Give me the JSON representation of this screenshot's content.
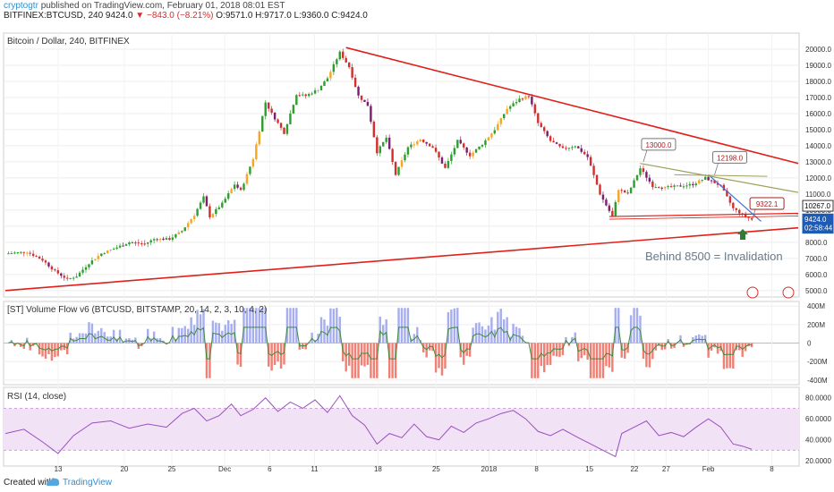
{
  "header": {
    "user": "cryptogtr",
    "published": "published on TradingView.com, February 01, 2018 08:01 EST",
    "ticker": "BITFINEX:BTCUSD, 240",
    "last": "9424.0",
    "change": "−843.0 (−8.21%)",
    "ohlc": "O:9571.0 H:9717.0 L:9360.0 C:9424.0"
  },
  "footer": {
    "created": "Created with",
    "brand": "TradingView"
  },
  "colors": {
    "up": "#2e9e2e",
    "down": "#d32f2f",
    "orange": "#f5a623",
    "purple": "#7b1f6e",
    "trend": "#e0201a",
    "olive": "#9ba05c",
    "blue": "#3f6fdc",
    "rsi_line": "#9a4fc0",
    "rsi_band": "#f1e2f6",
    "vf_pos": "#a6aef0",
    "vf_neg": "#f07f74",
    "vf_line": "#3f8c3c"
  },
  "chart_data": [
    {
      "type": "candlestick",
      "title": "Bitcoin / Dollar, 240, BITFINEX",
      "ylim": [
        4600,
        21000
      ],
      "y_ticks": [
        "20000.0",
        "19000.0",
        "18000.0",
        "17000.0",
        "16000.0",
        "15000.0",
        "14000.0",
        "13000.0",
        "12000.0",
        "11000.0",
        "10000.0",
        "9000.0",
        "8000.0",
        "7000.0",
        "6000.0",
        "5000.0"
      ],
      "x_ticks": [
        "13",
        "20",
        "25",
        "Dec",
        "6",
        "11",
        "18",
        "25",
        "2018",
        "8",
        "15",
        "22",
        "27",
        "Feb",
        "8"
      ],
      "price_path": [
        [
          0,
          7300
        ],
        [
          7,
          7400
        ],
        [
          12,
          6900
        ],
        [
          16,
          6200
        ],
        [
          20,
          5700
        ],
        [
          23,
          5900
        ],
        [
          27,
          6700
        ],
        [
          31,
          7300
        ],
        [
          35,
          7600
        ],
        [
          40,
          8000
        ],
        [
          45,
          7900
        ],
        [
          48,
          8200
        ],
        [
          53,
          8200
        ],
        [
          57,
          8700
        ],
        [
          61,
          9700
        ],
        [
          64,
          10800
        ],
        [
          66,
          9600
        ],
        [
          70,
          10400
        ],
        [
          74,
          11600
        ],
        [
          76,
          11200
        ],
        [
          80,
          13200
        ],
        [
          84,
          16700
        ],
        [
          86,
          16000
        ],
        [
          90,
          14800
        ],
        [
          94,
          17200
        ],
        [
          97,
          17100
        ],
        [
          101,
          17500
        ],
        [
          104,
          18200
        ],
        [
          108,
          19800
        ],
        [
          111,
          18900
        ],
        [
          114,
          17100
        ],
        [
          117,
          16500
        ],
        [
          120,
          13600
        ],
        [
          123,
          14500
        ],
        [
          126,
          12200
        ],
        [
          130,
          13900
        ],
        [
          134,
          14400
        ],
        [
          138,
          13900
        ],
        [
          142,
          12600
        ],
        [
          146,
          14300
        ],
        [
          150,
          13400
        ],
        [
          154,
          14100
        ],
        [
          158,
          15000
        ],
        [
          162,
          16300
        ],
        [
          166,
          16900
        ],
        [
          169,
          17100
        ],
        [
          172,
          15400
        ],
        [
          176,
          14300
        ],
        [
          180,
          13800
        ],
        [
          184,
          14000
        ],
        [
          188,
          13300
        ],
        [
          192,
          11000
        ],
        [
          196,
          9600
        ],
        [
          198,
          11300
        ],
        [
          201,
          11000
        ],
        [
          205,
          12600
        ],
        [
          209,
          11500
        ],
        [
          213,
          11400
        ],
        [
          218,
          11500
        ],
        [
          222,
          11600
        ],
        [
          226,
          12000
        ],
        [
          231,
          11500
        ],
        [
          235,
          10100
        ],
        [
          239,
          9600
        ],
        [
          241,
          9424
        ]
      ],
      "callouts": [
        {
          "label": "13000.0",
          "x": 206,
          "y": 13000
        },
        {
          "label": "12198.0",
          "x": 229,
          "y": 12198
        },
        {
          "label": "9322.1",
          "x": 241,
          "y": 9322
        }
      ],
      "price_badges": [
        {
          "label": "10267.0",
          "y": 10267
        },
        {
          "label": "9424.0",
          "y": 9424
        },
        {
          "label": "02:58:44",
          "y": 8900
        }
      ],
      "annotation": "Behind 8500 = Invalidation",
      "trendlines": [
        {
          "name": "upper",
          "from": [
            110,
            20100
          ],
          "to": [
            256,
            12900
          ]
        },
        {
          "name": "lower",
          "from": [
            0,
            5000
          ],
          "to": [
            256,
            8900
          ]
        },
        {
          "name": "support",
          "from": [
            195,
            9600
          ],
          "to": [
            256,
            9800
          ]
        },
        {
          "name": "blue",
          "from": [
            227,
            12200
          ],
          "to": [
            244,
            9300
          ]
        },
        {
          "name": "olive1",
          "from": [
            205,
            12900
          ],
          "to": [
            256,
            11100
          ]
        },
        {
          "name": "olive2",
          "from": [
            216,
            12200
          ],
          "to": [
            246,
            12100
          ]
        }
      ]
    },
    {
      "type": "bar",
      "title": "[ST] Volume Flow v6 (BTCUSD, BITSTAMP, 20, 14, 2, 3, 10, 4, 2)",
      "ylim": [
        -450,
        450
      ],
      "y_ticks": [
        "400M",
        "200M",
        "0",
        "-200M",
        "-400M"
      ]
    },
    {
      "type": "line",
      "title": "RSI (14, close)",
      "ylim": [
        15,
        90
      ],
      "y_ticks": [
        "80.0000",
        "60.0000",
        "40.0000",
        "20.0000"
      ],
      "band": [
        30,
        70
      ],
      "rsi_path": [
        [
          0,
          46
        ],
        [
          6,
          50
        ],
        [
          12,
          38
        ],
        [
          17,
          27
        ],
        [
          22,
          44
        ],
        [
          28,
          56
        ],
        [
          34,
          58
        ],
        [
          40,
          51
        ],
        [
          46,
          55
        ],
        [
          52,
          52
        ],
        [
          57,
          65
        ],
        [
          61,
          70
        ],
        [
          65,
          58
        ],
        [
          69,
          63
        ],
        [
          73,
          74
        ],
        [
          76,
          63
        ],
        [
          80,
          69
        ],
        [
          84,
          80
        ],
        [
          88,
          67
        ],
        [
          92,
          76
        ],
        [
          96,
          70
        ],
        [
          100,
          78
        ],
        [
          104,
          66
        ],
        [
          108,
          82
        ],
        [
          112,
          63
        ],
        [
          116,
          54
        ],
        [
          120,
          36
        ],
        [
          124,
          46
        ],
        [
          128,
          42
        ],
        [
          132,
          55
        ],
        [
          136,
          43
        ],
        [
          140,
          40
        ],
        [
          144,
          53
        ],
        [
          148,
          47
        ],
        [
          152,
          56
        ],
        [
          156,
          60
        ],
        [
          160,
          65
        ],
        [
          164,
          68
        ],
        [
          168,
          60
        ],
        [
          172,
          48
        ],
        [
          176,
          44
        ],
        [
          180,
          50
        ],
        [
          185,
          42
        ],
        [
          189,
          36
        ],
        [
          193,
          30
        ],
        [
          197,
          24
        ],
        [
          199,
          46
        ],
        [
          203,
          52
        ],
        [
          207,
          58
        ],
        [
          211,
          44
        ],
        [
          215,
          47
        ],
        [
          219,
          43
        ],
        [
          223,
          52
        ],
        [
          227,
          60
        ],
        [
          231,
          52
        ],
        [
          235,
          36
        ],
        [
          238,
          34
        ],
        [
          241,
          31
        ]
      ]
    }
  ]
}
